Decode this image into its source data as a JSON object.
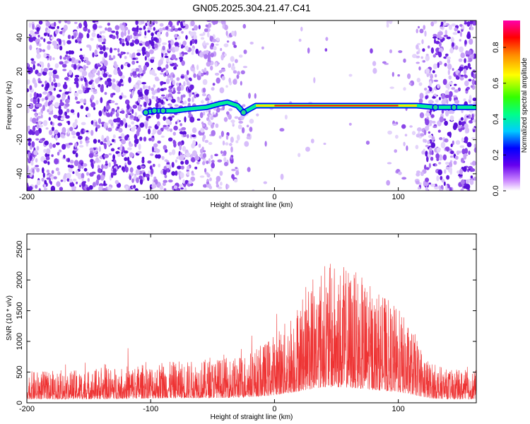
{
  "title": "GN05.2025.304.21.47.C41",
  "chart_data": [
    {
      "type": "heatmap",
      "name": "spectrogram",
      "xlabel": "Height of straight line (km)",
      "ylabel": "Frequency (Hz)",
      "xlim": [
        -200,
        163
      ],
      "ylim": [
        -50,
        50
      ],
      "xticks": [
        -200,
        -100,
        0,
        100
      ],
      "yticks": [
        -40,
        -20,
        0,
        20,
        40
      ],
      "colorbar": {
        "label": "Normalized spectral amplitude",
        "range": [
          0,
          0.95
        ],
        "ticks": [
          0,
          0.2,
          0.4,
          0.6,
          0.8
        ]
      },
      "line_track": [
        {
          "x": -104,
          "y": -4
        },
        {
          "x": -97,
          "y": -3
        },
        {
          "x": -90,
          "y": -3
        },
        {
          "x": -80,
          "y": -3
        },
        {
          "x": -70,
          "y": -2
        },
        {
          "x": -55,
          "y": -1
        },
        {
          "x": -45,
          "y": 1
        },
        {
          "x": -38,
          "y": 2
        },
        {
          "x": -30,
          "y": 0
        },
        {
          "x": -25,
          "y": -4
        },
        {
          "x": -20,
          "y": -2
        },
        {
          "x": -15,
          "y": 0
        },
        {
          "x": 0,
          "y": 0
        },
        {
          "x": 50,
          "y": 0
        },
        {
          "x": 100,
          "y": 0
        },
        {
          "x": 115,
          "y": 0
        },
        {
          "x": 130,
          "y": -1
        },
        {
          "x": 145,
          "y": -1
        },
        {
          "x": 163,
          "y": -1
        }
      ]
    },
    {
      "type": "line",
      "name": "snr",
      "xlabel": "Height of straight line (km)",
      "ylabel": "SNR (10 * v/v)",
      "xlim": [
        -200,
        163
      ],
      "ylim": [
        0,
        2750
      ],
      "xticks": [
        -200,
        -100,
        0,
        100
      ],
      "yticks": [
        0,
        500,
        1000,
        1500,
        2000,
        2500
      ],
      "color": "#ee3333",
      "envelope": [
        {
          "x": -200,
          "y": 380
        },
        {
          "x": -150,
          "y": 400
        },
        {
          "x": -100,
          "y": 480
        },
        {
          "x": -60,
          "y": 520
        },
        {
          "x": -30,
          "y": 560
        },
        {
          "x": -10,
          "y": 700
        },
        {
          "x": 10,
          "y": 1000
        },
        {
          "x": 25,
          "y": 1400
        },
        {
          "x": 40,
          "y": 1700
        },
        {
          "x": 60,
          "y": 1650
        },
        {
          "x": 80,
          "y": 1400
        },
        {
          "x": 100,
          "y": 1150
        },
        {
          "x": 115,
          "y": 800
        },
        {
          "x": 125,
          "y": 500
        },
        {
          "x": 140,
          "y": 400
        },
        {
          "x": 163,
          "y": 400
        }
      ]
    }
  ]
}
